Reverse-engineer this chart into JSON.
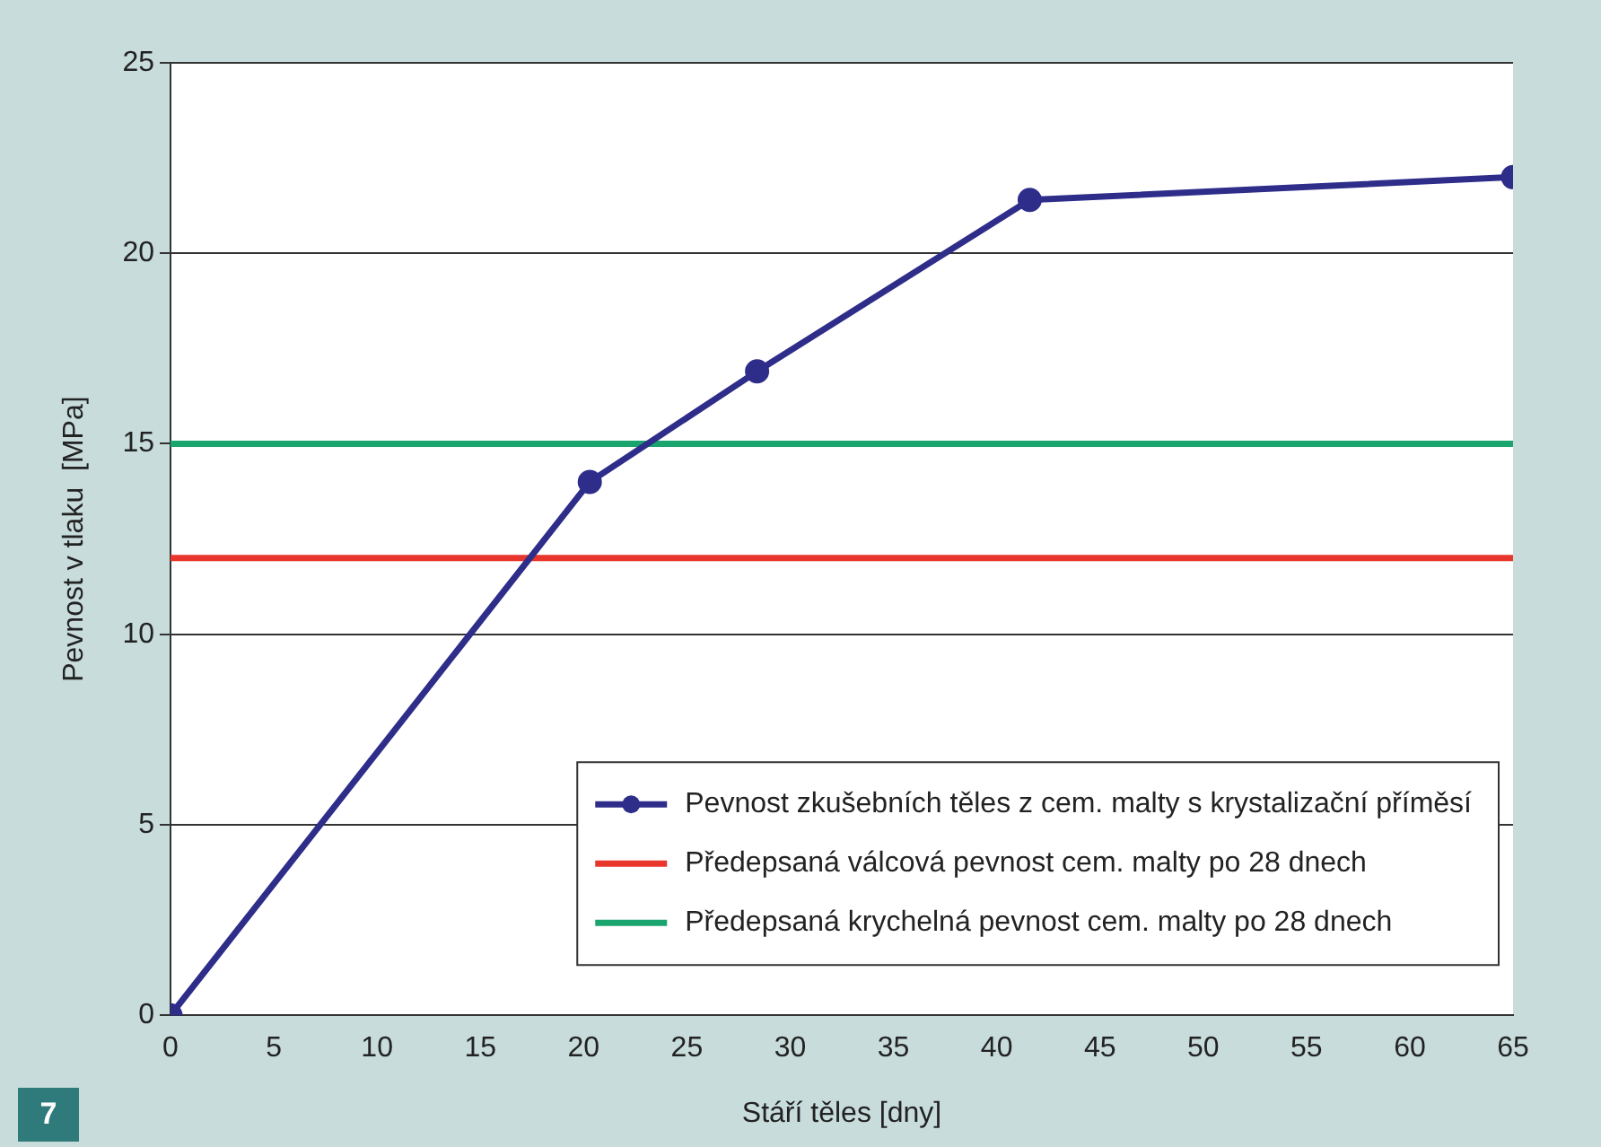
{
  "chart_data": {
    "type": "line",
    "xlabel": "Stáří těles [dny]",
    "ylabel": "Pevnost v tlaku  [MPa]",
    "xlim": [
      0,
      65
    ],
    "xticks": [
      0,
      5,
      10,
      15,
      20,
      25,
      30,
      35,
      40,
      45,
      50,
      55,
      60,
      65
    ],
    "ylim": [
      0,
      25
    ],
    "yticks": [
      0,
      5,
      10,
      15,
      20,
      25
    ],
    "grid": "y",
    "legend": "bottom right",
    "line_style": "solid",
    "series": [
      {
        "name": "Pevnost zkušebních těles z cem. malty s krystalizační příměsí",
        "color": "#2e2d8a",
        "marker": "circle",
        "x": [
          0,
          20.3,
          28.4,
          41.6,
          65
        ],
        "values": [
          0,
          14,
          16.9,
          21.4,
          22
        ]
      },
      {
        "name": "Předepsaná válcová pevnost cem. malty po 28 dnech",
        "color": "#e8362c",
        "marker": "none",
        "x": [
          0,
          65
        ],
        "values": [
          12,
          12
        ]
      },
      {
        "name": "Předepsaná krychelná pevnost cem. malty po 28 dnech",
        "color": "#1aa56f",
        "marker": "none",
        "x": [
          0,
          65
        ],
        "values": [
          15,
          15
        ]
      }
    ],
    "annotations": [
      "7"
    ]
  }
}
